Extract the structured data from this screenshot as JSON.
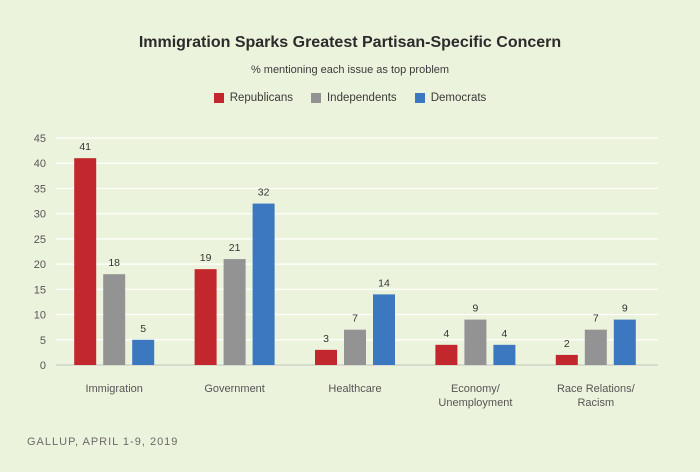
{
  "chart_data": {
    "type": "bar",
    "title": "Immigration Sparks Greatest Partisan-Specific Concern",
    "subtitle": "% mentioning each issue as top problem",
    "xlabel": "",
    "ylabel": "",
    "ylim": [
      0,
      45
    ],
    "yticks": [
      0,
      5,
      10,
      15,
      20,
      25,
      30,
      35,
      40,
      45
    ],
    "grid": true,
    "legend_position": "top-center",
    "categories": [
      [
        "Immigration"
      ],
      [
        "Government"
      ],
      [
        "Healthcare"
      ],
      [
        "Economy/",
        "Unemployment"
      ],
      [
        "Race Relations/",
        "Racism"
      ]
    ],
    "series": [
      {
        "name": "Republicans",
        "color": "#c1272d",
        "values": [
          41,
          19,
          3,
          4,
          2
        ]
      },
      {
        "name": "Independents",
        "color": "#939393",
        "values": [
          18,
          21,
          7,
          9,
          7
        ]
      },
      {
        "name": "Democrats",
        "color": "#3b78bf",
        "values": [
          5,
          32,
          14,
          4,
          9
        ]
      }
    ],
    "source": "GALLUP, APRIL 1-9, 2019"
  }
}
